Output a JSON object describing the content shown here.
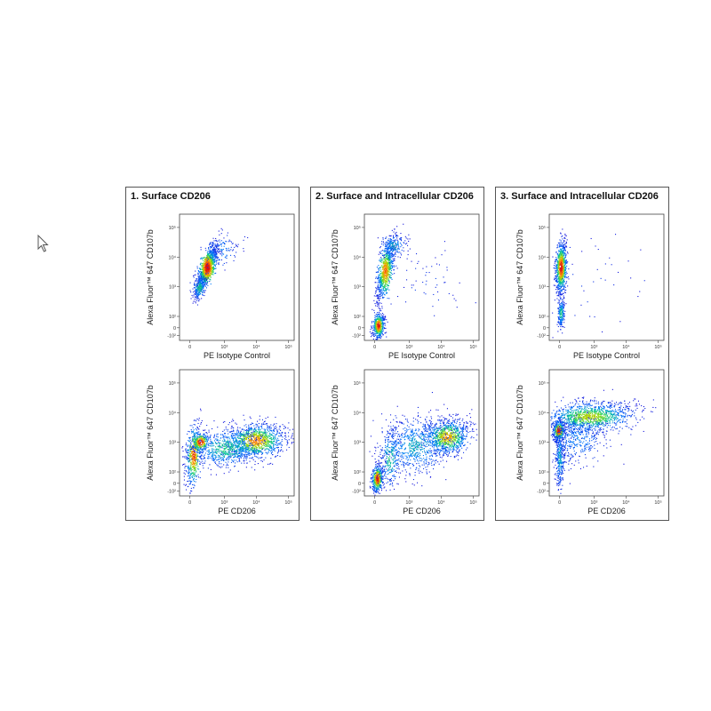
{
  "panels": [
    {
      "title": "1. Surface CD206",
      "plots": [
        {
          "xlabel": "PE Isotype Control",
          "ylabel": "Alexa Fluor™ 647 CD107b"
        },
        {
          "xlabel": "PE CD206",
          "ylabel": "Alexa Fluor™ 647 CD107b"
        }
      ]
    },
    {
      "title": "2. Surface and Intracellular CD206",
      "plots": [
        {
          "xlabel": "PE Isotype Control",
          "ylabel": "Alexa Fluor™ 647 CD107b"
        },
        {
          "xlabel": "PE CD206",
          "ylabel": "Alexa Fluor™ 647 CD107b"
        }
      ]
    },
    {
      "title": "3. Surface and Intracellular CD206",
      "plots": [
        {
          "xlabel": "PE Isotype Control",
          "ylabel": "Alexa Fluor™ 647 CD107b"
        },
        {
          "xlabel": "PE CD206",
          "ylabel": "Alexa Fluor™ 647 CD107b"
        }
      ]
    }
  ],
  "axis_ticks": {
    "x": [
      "0",
      "10³",
      "10⁴",
      "10⁵"
    ],
    "y": [
      "10⁵",
      "10⁴",
      "10³",
      "10²",
      "0",
      "-10²"
    ]
  },
  "chart_data": [
    {
      "type": "scatter",
      "panel": "1. Surface CD206",
      "xlabel": "PE Isotype Control",
      "ylabel": "Alexa Fluor™ 647 CD107b",
      "x_scale": "biexponential",
      "y_scale": "biexponential",
      "clusters": [
        {
          "x": 30,
          "y": 1500,
          "density": "high"
        }
      ]
    },
    {
      "type": "scatter",
      "panel": "1. Surface CD206",
      "xlabel": "PE CD206",
      "ylabel": "Alexa Fluor™ 647 CD107b",
      "x_scale": "biexponential",
      "y_scale": "biexponential",
      "clusters": [
        {
          "x": 0,
          "y": 1000,
          "density": "high"
        },
        {
          "x": 2000,
          "y": 2000,
          "density": "high"
        }
      ]
    },
    {
      "type": "scatter",
      "panel": "2. Surface and Intracellular CD206",
      "xlabel": "PE Isotype Control",
      "ylabel": "Alexa Fluor™ 647 CD107b",
      "x_scale": "biexponential",
      "y_scale": "biexponential",
      "clusters": [
        {
          "x": 0,
          "y": 80,
          "density": "high"
        },
        {
          "x": 50,
          "y": 2000,
          "density": "high"
        }
      ]
    },
    {
      "type": "scatter",
      "panel": "2. Surface and Intracellular CD206",
      "xlabel": "PE CD206",
      "ylabel": "Alexa Fluor™ 647 CD107b",
      "x_scale": "biexponential",
      "y_scale": "biexponential",
      "clusters": [
        {
          "x": 0,
          "y": 80,
          "density": "high"
        },
        {
          "x": 5000,
          "y": 2500,
          "density": "high"
        }
      ]
    },
    {
      "type": "scatter",
      "panel": "3. Surface and Intracellular CD206",
      "xlabel": "PE Isotype Control",
      "ylabel": "Alexa Fluor™ 647 CD107b",
      "x_scale": "biexponential",
      "y_scale": "biexponential",
      "clusters": [
        {
          "x": 0,
          "y": 3000,
          "density": "high"
        }
      ]
    },
    {
      "type": "scatter",
      "panel": "3. Surface and Intracellular CD206",
      "xlabel": "PE CD206",
      "ylabel": "Alexa Fluor™ 647 CD107b",
      "x_scale": "biexponential",
      "y_scale": "biexponential",
      "clusters": [
        {
          "x": 0,
          "y": 1500,
          "density": "high"
        },
        {
          "x": 1500,
          "y": 4000,
          "density": "medium"
        }
      ]
    }
  ]
}
